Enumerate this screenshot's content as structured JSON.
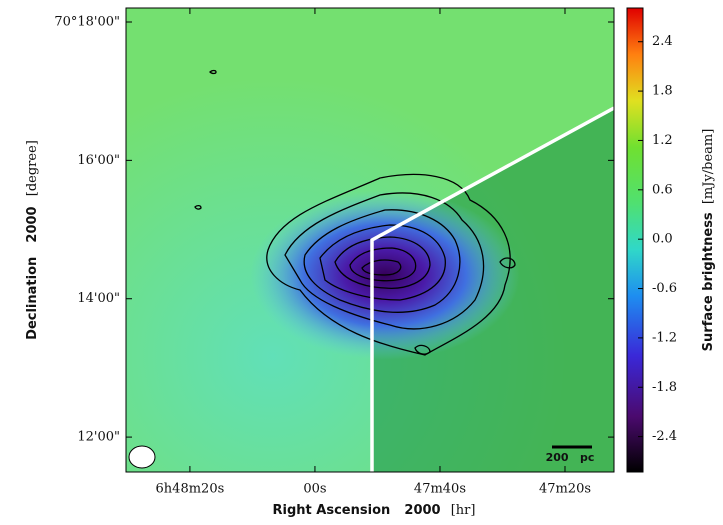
{
  "chart_data": {
    "type": "image",
    "x_label": {
      "name": "Right Ascension",
      "epoch": "2000",
      "unit": "[hr]"
    },
    "y_label": {
      "name": "Declination",
      "epoch": "2000",
      "unit": "[degree]"
    },
    "xlim": [
      6.808396,
      6.786711
    ],
    "xticks": [
      {
        "value": 6.805556,
        "label": "6h48m20s"
      },
      {
        "value": 6.8,
        "label": "00s"
      },
      {
        "value": 6.794444,
        "label": "47m40s"
      },
      {
        "value": 6.788889,
        "label": "47m20s"
      }
    ],
    "ylim": [
      70.19159,
      70.30337
    ],
    "yticks": [
      {
        "value": 70.3,
        "label": "70°18'00\""
      },
      {
        "value": 70.266667,
        "label": "16'00\""
      },
      {
        "value": 70.233333,
        "label": "14'00\""
      },
      {
        "value": 70.2,
        "label": "12'00\""
      }
    ],
    "colorbar": {
      "label": "Surface brightness",
      "unit": "[mJy/beam]",
      "lim": [
        -2.83,
        2.81
      ],
      "ticks": [
        -2.4,
        -1.8,
        -1.2,
        -0.6,
        {
          "value": 0,
          "label": "0.0"
        },
        0.6,
        1.2,
        1.8,
        2.4
      ]
    },
    "scale_bar": "200   pc"
  }
}
